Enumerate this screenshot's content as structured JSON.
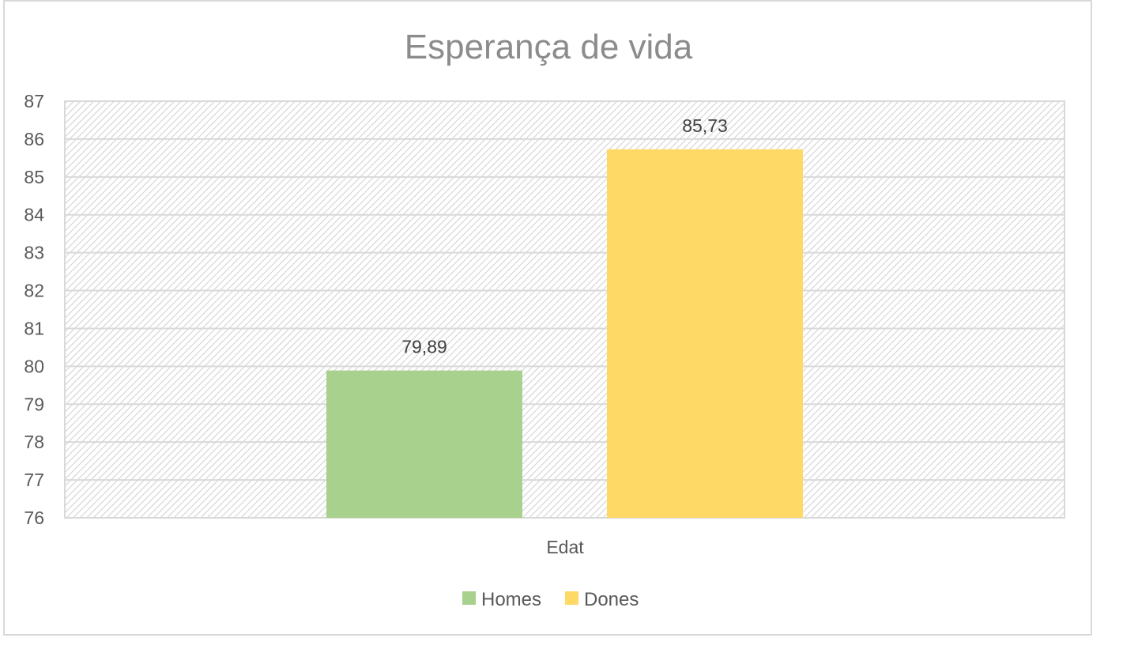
{
  "chart_data": {
    "type": "bar",
    "title": "Esperança de vida",
    "categories": [
      "Edat"
    ],
    "series": [
      {
        "name": "Homes",
        "values": [
          79.89
        ],
        "label": "79,89",
        "color": "#a9d18e"
      },
      {
        "name": "Dones",
        "values": [
          85.73
        ],
        "label": "85,73",
        "color": "#ffd966"
      }
    ],
    "ylim": [
      76,
      87
    ],
    "yticks": [
      "76",
      "77",
      "78",
      "79",
      "80",
      "81",
      "82",
      "83",
      "84",
      "85",
      "86",
      "87"
    ],
    "grid": true,
    "plot_background": "hatched",
    "legend_position": "bottom"
  }
}
